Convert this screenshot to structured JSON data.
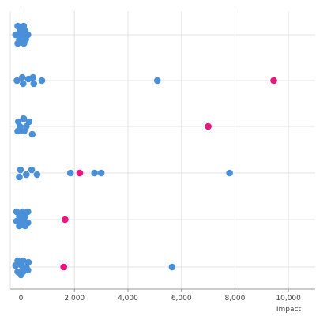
{
  "chart_data": {
    "type": "scatter",
    "title": "",
    "xlabel": "Impact",
    "ylabel": "",
    "xlim": [
      -400,
      11000
    ],
    "x_ticks": [
      0,
      2000,
      4000,
      6000,
      8000,
      10000
    ],
    "x_tick_labels": [
      "0",
      "2,000",
      "4,000",
      "6,000",
      "8,000",
      "10,000"
    ],
    "grid": true,
    "rows": 6,
    "colors": {
      "default": "#4a90d9",
      "highlight": "#e8177d"
    },
    "series": [
      {
        "row": 0,
        "points": [
          {
            "x": -120,
            "o": -11
          },
          {
            "x": 100,
            "o": -11
          },
          {
            "x": -30,
            "o": -5
          },
          {
            "x": 160,
            "o": -5
          },
          {
            "x": -200,
            "o": 0
          },
          {
            "x": 40,
            "o": 0
          },
          {
            "x": 260,
            "o": 0
          },
          {
            "x": -60,
            "o": 6
          },
          {
            "x": 180,
            "o": 6
          },
          {
            "x": -120,
            "o": 11
          },
          {
            "x": 110,
            "o": 11
          }
        ]
      },
      {
        "row": 1,
        "points": [
          {
            "x": -150,
            "o": 0
          },
          {
            "x": 50,
            "o": -4
          },
          {
            "x": 80,
            "o": 4
          },
          {
            "x": 280,
            "o": -2
          },
          {
            "x": 450,
            "o": -4
          },
          {
            "x": 480,
            "o": 4
          },
          {
            "x": 780,
            "o": 0
          },
          {
            "x": 5100,
            "o": 0
          },
          {
            "x": 9450,
            "o": 0,
            "highlight": true
          }
        ]
      },
      {
        "row": 2,
        "points": [
          {
            "x": -100,
            "o": -6
          },
          {
            "x": 100,
            "o": -10
          },
          {
            "x": 300,
            "o": -6
          },
          {
            "x": -40,
            "o": 0
          },
          {
            "x": 200,
            "o": 0
          },
          {
            "x": -120,
            "o": 6
          },
          {
            "x": 120,
            "o": 6
          },
          {
            "x": 420,
            "o": 10
          },
          {
            "x": 7000,
            "o": 0,
            "highlight": true
          }
        ]
      },
      {
        "row": 3,
        "points": [
          {
            "x": -20,
            "o": -4
          },
          {
            "x": -60,
            "o": 5
          },
          {
            "x": 200,
            "o": 2
          },
          {
            "x": 400,
            "o": -4
          },
          {
            "x": 600,
            "o": 2
          },
          {
            "x": 1850,
            "o": 0
          },
          {
            "x": 2200,
            "o": 0,
            "highlight": true
          },
          {
            "x": 2750,
            "o": 0
          },
          {
            "x": 3000,
            "o": 0
          },
          {
            "x": 7800,
            "o": 0
          }
        ]
      },
      {
        "row": 4,
        "points": [
          {
            "x": -160,
            "o": -10
          },
          {
            "x": 60,
            "o": -10
          },
          {
            "x": 260,
            "o": -10
          },
          {
            "x": -60,
            "o": -4
          },
          {
            "x": 160,
            "o": -4
          },
          {
            "x": -160,
            "o": 2
          },
          {
            "x": 60,
            "o": 2
          },
          {
            "x": 260,
            "o": 4
          },
          {
            "x": -60,
            "o": 8
          },
          {
            "x": 160,
            "o": 8
          },
          {
            "x": 1650,
            "o": 0,
            "highlight": true
          }
        ]
      },
      {
        "row": 5,
        "points": [
          {
            "x": -120,
            "o": -8
          },
          {
            "x": 80,
            "o": -8
          },
          {
            "x": 280,
            "o": -6
          },
          {
            "x": -200,
            "o": -2
          },
          {
            "x": 20,
            "o": -2
          },
          {
            "x": 200,
            "o": 0
          },
          {
            "x": -120,
            "o": 6
          },
          {
            "x": 80,
            "o": 6
          },
          {
            "x": 260,
            "o": 4
          },
          {
            "x": 0,
            "o": 10
          },
          {
            "x": 1600,
            "o": 0,
            "highlight": true
          },
          {
            "x": 5650,
            "o": 0
          }
        ]
      }
    ]
  }
}
